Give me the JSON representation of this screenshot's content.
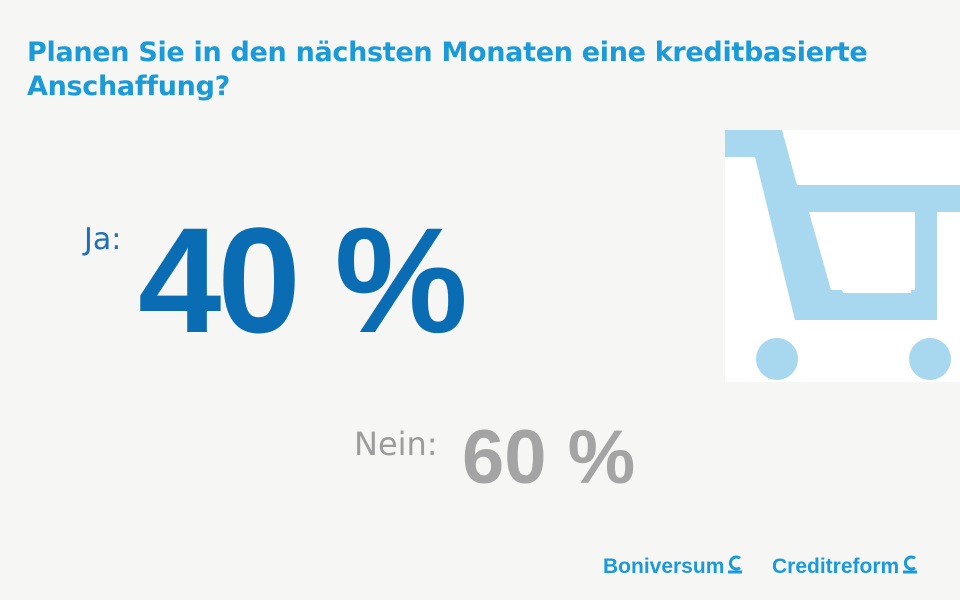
{
  "title": "Planen Sie in den nächsten Monaten eine kreditbasierte Anschaffung?",
  "answers": {
    "yes": {
      "label": "Ja:",
      "value_text": "40 %",
      "value": 40
    },
    "no": {
      "label": "Nein:",
      "value_text": "60 %",
      "value": 60
    }
  },
  "illustration": {
    "icon": "shopping-cart-icon"
  },
  "logos": {
    "boniversum": "Boniversum",
    "creditreform": "Creditreform",
    "mark_icon": "creditreform-c-icon"
  },
  "colors": {
    "title": "#1a9ad9",
    "yes_value": "#0a6db4",
    "yes_label": "#1f6fb8",
    "no": "#a4a4a4",
    "cart": "#a8d8f0",
    "background": "#f6f6f4"
  }
}
